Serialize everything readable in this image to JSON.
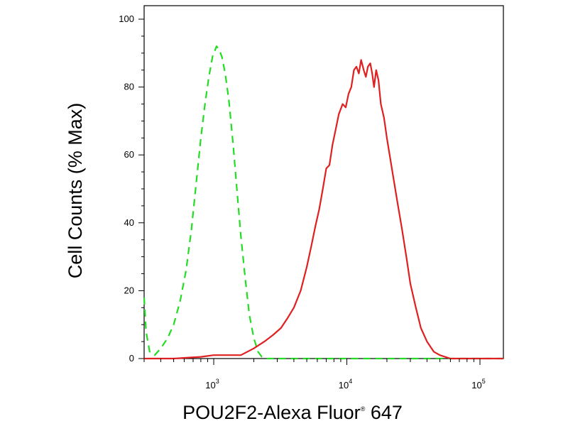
{
  "chart_data": {
    "type": "line",
    "title": "",
    "xlabel": "POU2F2-Alexa Fluor",
    "xlabel_mark": "®",
    "xlabel_suffix": " 647",
    "ylabel": "Cell Counts (% Max)",
    "x_scale": "log",
    "xlim": [
      300,
      150000
    ],
    "ylim": [
      0,
      100
    ],
    "y_ticks": [
      0,
      20,
      40,
      60,
      80,
      100
    ],
    "x_ticks": [
      {
        "value": 1000,
        "base": "10",
        "exp": "3"
      },
      {
        "value": 10000,
        "base": "10",
        "exp": "4"
      },
      {
        "value": 100000,
        "base": "10",
        "exp": "5"
      }
    ],
    "grid": false,
    "series": [
      {
        "color": "#22dd22",
        "style": "dashed",
        "x": [
          300,
          310,
          330,
          360,
          400,
          450,
          500,
          560,
          620,
          680,
          740,
          800,
          860,
          920,
          980,
          1050,
          1100,
          1150,
          1220,
          1300,
          1400,
          1500,
          1600,
          1720,
          1850,
          2000,
          2150,
          2300,
          2500,
          3000,
          5000,
          10000,
          30000,
          100000,
          150000
        ],
        "y": [
          18,
          8,
          2,
          1,
          3,
          6,
          10,
          17,
          26,
          38,
          52,
          65,
          75,
          83,
          89,
          92,
          91,
          89,
          84,
          76,
          63,
          49,
          36,
          24,
          13,
          6,
          2,
          0.5,
          0,
          0,
          0,
          0,
          0,
          0,
          0
        ]
      },
      {
        "color": "#e02020",
        "style": "solid",
        "x": [
          300,
          500,
          800,
          1000,
          1300,
          1600,
          2000,
          2400,
          2800,
          3200,
          3600,
          4000,
          4500,
          5000,
          5400,
          5800,
          6200,
          6600,
          7000,
          7400,
          7800,
          8200,
          8700,
          9300,
          9800,
          10300,
          10800,
          11300,
          11800,
          12300,
          12800,
          13400,
          13900,
          14400,
          15000,
          15500,
          16000,
          16600,
          17300,
          18000,
          19000,
          20000,
          22000,
          24000,
          26000,
          28000,
          30000,
          33000,
          36000,
          40000,
          45000,
          50000,
          60000,
          70000,
          100000,
          150000
        ],
        "y": [
          0,
          0,
          0.5,
          1,
          1,
          1,
          3,
          5,
          7,
          9,
          12,
          15,
          20,
          27,
          33,
          39,
          44,
          50,
          56,
          57,
          63,
          67,
          72,
          75,
          74,
          78,
          80,
          85,
          86,
          84,
          88,
          85,
          83,
          86,
          87,
          84,
          80,
          85,
          82,
          75,
          71,
          65,
          55,
          46,
          38,
          30,
          22,
          15,
          9,
          5,
          2,
          1,
          0,
          0,
          0,
          0
        ]
      }
    ]
  }
}
